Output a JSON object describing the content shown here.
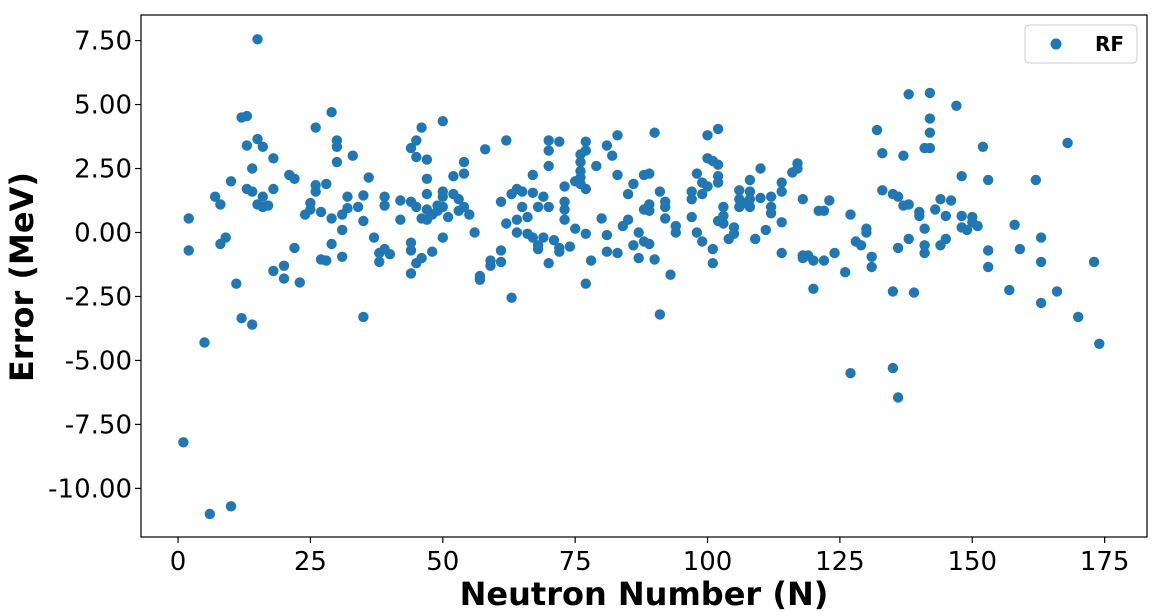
{
  "chart_data": {
    "type": "scatter",
    "title": "",
    "xlabel": "Neutron Number (N)",
    "ylabel": "Error (MeV)",
    "xlim": [
      -7,
      183
    ],
    "ylim": [
      -11.9,
      8.5
    ],
    "xticks": [
      0,
      25,
      50,
      75,
      100,
      125,
      150,
      175
    ],
    "xtick_labels": [
      "0",
      "25",
      "50",
      "75",
      "100",
      "125",
      "150",
      "175"
    ],
    "yticks": [
      -10,
      -7.5,
      -5,
      -2.5,
      0,
      2.5,
      5,
      7.5
    ],
    "ytick_labels": [
      "-10.00",
      "-7.50",
      "-5.00",
      "-2.50",
      "0.00",
      "2.50",
      "5.00",
      "7.50"
    ],
    "grid": false,
    "legend": {
      "position": "top-right",
      "entries": [
        "RF"
      ]
    },
    "series": [
      {
        "name": "RF",
        "color": "#1f77b4",
        "points": [
          [
            1,
            -8.2
          ],
          [
            2,
            0.55
          ],
          [
            2,
            -0.7
          ],
          [
            5,
            -4.3
          ],
          [
            6,
            -11.0
          ],
          [
            7,
            1.4
          ],
          [
            8,
            1.1
          ],
          [
            8,
            -0.45
          ],
          [
            9,
            -0.2
          ],
          [
            10,
            -10.7
          ],
          [
            10,
            2.0
          ],
          [
            11,
            -2.0
          ],
          [
            12,
            4.5
          ],
          [
            12,
            -3.35
          ],
          [
            13,
            4.55
          ],
          [
            13,
            3.4
          ],
          [
            13,
            1.7
          ],
          [
            14,
            2.5
          ],
          [
            14,
            1.6
          ],
          [
            14,
            -3.6
          ],
          [
            15,
            7.55
          ],
          [
            15,
            3.65
          ],
          [
            15,
            1.1
          ],
          [
            16,
            3.35
          ],
          [
            16,
            1.4
          ],
          [
            16,
            1.0
          ],
          [
            17,
            1.05
          ],
          [
            18,
            2.9
          ],
          [
            18,
            1.7
          ],
          [
            18,
            -1.5
          ],
          [
            20,
            -1.3
          ],
          [
            20,
            -1.8
          ],
          [
            21,
            2.25
          ],
          [
            22,
            2.1
          ],
          [
            22,
            -0.6
          ],
          [
            23,
            -1.95
          ],
          [
            24,
            0.7
          ],
          [
            25,
            1.15
          ],
          [
            25,
            0.9
          ],
          [
            26,
            4.1
          ],
          [
            26,
            1.85
          ],
          [
            26,
            1.6
          ],
          [
            27,
            0.8
          ],
          [
            27,
            -1.05
          ],
          [
            28,
            1.9
          ],
          [
            28,
            -1.1
          ],
          [
            29,
            4.7
          ],
          [
            29,
            0.55
          ],
          [
            29,
            -0.45
          ],
          [
            30,
            3.6
          ],
          [
            30,
            3.35
          ],
          [
            30,
            2.75
          ],
          [
            31,
            0.7
          ],
          [
            31,
            0.1
          ],
          [
            31,
            -0.95
          ],
          [
            32,
            1.4
          ],
          [
            32,
            0.95
          ],
          [
            33,
            3.0
          ],
          [
            34,
            1.0
          ],
          [
            35,
            1.45
          ],
          [
            35,
            0.45
          ],
          [
            35,
            -3.3
          ],
          [
            36,
            2.15
          ],
          [
            37,
            -0.2
          ],
          [
            38,
            -0.8
          ],
          [
            38,
            -1.15
          ],
          [
            39,
            1.4
          ],
          [
            39,
            1.05
          ],
          [
            39,
            -0.65
          ],
          [
            40,
            -0.85
          ],
          [
            42,
            1.25
          ],
          [
            42,
            0.5
          ],
          [
            44,
            3.3
          ],
          [
            44,
            1.2
          ],
          [
            44,
            -0.4
          ],
          [
            44,
            -0.7
          ],
          [
            44,
            -1.6
          ],
          [
            45,
            3.6
          ],
          [
            45,
            2.95
          ],
          [
            45,
            1.0
          ],
          [
            45,
            -1.2
          ],
          [
            46,
            4.1
          ],
          [
            46,
            0.55
          ],
          [
            46,
            -1.0
          ],
          [
            47,
            2.85
          ],
          [
            47,
            2.1
          ],
          [
            47,
            1.5
          ],
          [
            47,
            0.9
          ],
          [
            47,
            0.5
          ],
          [
            48,
            0.7
          ],
          [
            48,
            -0.75
          ],
          [
            49,
            1.05
          ],
          [
            49,
            0.85
          ],
          [
            50,
            4.35
          ],
          [
            50,
            1.6
          ],
          [
            50,
            1.4
          ],
          [
            50,
            1.0
          ],
          [
            50,
            -0.2
          ],
          [
            51,
            0.6
          ],
          [
            52,
            2.2
          ],
          [
            52,
            1.5
          ],
          [
            53,
            0.85
          ],
          [
            53,
            1.3
          ],
          [
            54,
            2.75
          ],
          [
            54,
            2.3
          ],
          [
            54,
            1.0
          ],
          [
            55,
            0.7
          ],
          [
            56,
            0.0
          ],
          [
            57,
            -1.7
          ],
          [
            57,
            -1.85
          ],
          [
            58,
            3.25
          ],
          [
            59,
            -1.1
          ],
          [
            59,
            -1.3
          ],
          [
            61,
            -0.7
          ],
          [
            61,
            -1.15
          ],
          [
            61,
            1.2
          ],
          [
            62,
            3.6
          ],
          [
            62,
            0.35
          ],
          [
            63,
            1.5
          ],
          [
            63,
            -2.55
          ],
          [
            64,
            1.7
          ],
          [
            64,
            0.5
          ],
          [
            64,
            0.0
          ],
          [
            65,
            1.6
          ],
          [
            65,
            1.0
          ],
          [
            66,
            0.6
          ],
          [
            66,
            -0.05
          ],
          [
            67,
            1.55
          ],
          [
            67,
            2.25
          ],
          [
            67,
            -0.2
          ],
          [
            68,
            1.0
          ],
          [
            68,
            -0.5
          ],
          [
            68,
            -0.65
          ],
          [
            69,
            1.4
          ],
          [
            69,
            -0.2
          ],
          [
            70,
            3.6
          ],
          [
            70,
            3.2
          ],
          [
            70,
            2.6
          ],
          [
            70,
            1.0
          ],
          [
            70,
            -1.2
          ],
          [
            71,
            -0.3
          ],
          [
            72,
            3.55
          ],
          [
            72,
            -0.6
          ],
          [
            72,
            -0.75
          ],
          [
            73,
            1.8
          ],
          [
            73,
            1.2
          ],
          [
            73,
            0.9
          ],
          [
            73,
            0.5
          ],
          [
            74,
            -0.55
          ],
          [
            75,
            2.0
          ],
          [
            75,
            0.15
          ],
          [
            76,
            3.05
          ],
          [
            76,
            2.75
          ],
          [
            76,
            2.4
          ],
          [
            76,
            2.15
          ],
          [
            76,
            1.9
          ],
          [
            77,
            3.55
          ],
          [
            77,
            3.2
          ],
          [
            77,
            1.7
          ],
          [
            77,
            -0.05
          ],
          [
            77,
            -2.0
          ],
          [
            78,
            -1.1
          ],
          [
            79,
            2.6
          ],
          [
            80,
            0.55
          ],
          [
            81,
            3.4
          ],
          [
            81,
            -0.1
          ],
          [
            81,
            -0.75
          ],
          [
            82,
            3.0
          ],
          [
            83,
            3.8
          ],
          [
            83,
            2.25
          ],
          [
            83,
            -0.8
          ],
          [
            84,
            0.25
          ],
          [
            85,
            0.5
          ],
          [
            85,
            1.5
          ],
          [
            86,
            1.9
          ],
          [
            86,
            -0.5
          ],
          [
            87,
            0.0
          ],
          [
            87,
            -1.0
          ],
          [
            88,
            2.25
          ],
          [
            88,
            0.9
          ],
          [
            88,
            -0.35
          ],
          [
            89,
            2.3
          ],
          [
            89,
            1.1
          ],
          [
            89,
            0.85
          ],
          [
            89,
            -0.45
          ],
          [
            90,
            3.9
          ],
          [
            90,
            -1.05
          ],
          [
            91,
            1.6
          ],
          [
            91,
            -3.2
          ],
          [
            92,
            1.2
          ],
          [
            92,
            1.0
          ],
          [
            92,
            0.55
          ],
          [
            93,
            -1.65
          ],
          [
            94,
            0.25
          ],
          [
            94,
            0.0
          ],
          [
            97,
            1.6
          ],
          [
            97,
            1.3
          ],
          [
            97,
            0.6
          ],
          [
            98,
            2.3
          ],
          [
            98,
            0.0
          ],
          [
            99,
            1.95
          ],
          [
            99,
            1.5
          ],
          [
            99,
            -0.35
          ],
          [
            100,
            3.8
          ],
          [
            100,
            2.9
          ],
          [
            100,
            1.8
          ],
          [
            101,
            -0.65
          ],
          [
            101,
            -1.2
          ],
          [
            101,
            2.8
          ],
          [
            102,
            4.05
          ],
          [
            102,
            2.65
          ],
          [
            102,
            2.2
          ],
          [
            102,
            1.95
          ],
          [
            102,
            0.45
          ],
          [
            103,
            1.0
          ],
          [
            103,
            0.65
          ],
          [
            103,
            0.35
          ],
          [
            104,
            -0.25
          ],
          [
            105,
            0.2
          ],
          [
            105,
            -0.05
          ],
          [
            106,
            1.65
          ],
          [
            106,
            1.3
          ],
          [
            106,
            1.0
          ],
          [
            107,
            1.15
          ],
          [
            108,
            1.6
          ],
          [
            108,
            1.3
          ],
          [
            108,
            1.0
          ],
          [
            108,
            2.05
          ],
          [
            109,
            -0.25
          ],
          [
            110,
            2.5
          ],
          [
            110,
            1.35
          ],
          [
            111,
            0.1
          ],
          [
            112,
            1.4
          ],
          [
            112,
            1.0
          ],
          [
            112,
            0.75
          ],
          [
            114,
            1.95
          ],
          [
            114,
            1.6
          ],
          [
            114,
            0.4
          ],
          [
            114,
            -0.8
          ],
          [
            116,
            2.35
          ],
          [
            117,
            2.7
          ],
          [
            117,
            2.5
          ],
          [
            118,
            1.3
          ],
          [
            118,
            -0.9
          ],
          [
            118,
            -1.0
          ],
          [
            119,
            -0.9
          ],
          [
            120,
            -1.1
          ],
          [
            120,
            -2.2
          ],
          [
            121,
            0.85
          ],
          [
            122,
            0.85
          ],
          [
            122,
            -1.1
          ],
          [
            123,
            1.25
          ],
          [
            124,
            -0.8
          ],
          [
            126,
            -1.55
          ],
          [
            127,
            0.7
          ],
          [
            127,
            -5.5
          ],
          [
            128,
            -0.35
          ],
          [
            129,
            -0.5
          ],
          [
            130,
            0.15
          ],
          [
            130,
            0.0
          ],
          [
            131,
            -0.95
          ],
          [
            131,
            -1.35
          ],
          [
            132,
            4.0
          ],
          [
            133,
            3.1
          ],
          [
            133,
            1.65
          ],
          [
            135,
            1.5
          ],
          [
            135,
            -2.3
          ],
          [
            135,
            -5.3
          ],
          [
            136,
            1.4
          ],
          [
            136,
            -0.6
          ],
          [
            136,
            -6.45
          ],
          [
            137,
            3.0
          ],
          [
            137,
            1.05
          ],
          [
            138,
            5.4
          ],
          [
            138,
            1.1
          ],
          [
            138,
            -0.25
          ],
          [
            139,
            -2.35
          ],
          [
            140,
            0.8
          ],
          [
            140,
            0.65
          ],
          [
            141,
            3.3
          ],
          [
            141,
            0.15
          ],
          [
            141,
            -0.5
          ],
          [
            141,
            -0.8
          ],
          [
            142,
            5.45
          ],
          [
            142,
            4.45
          ],
          [
            142,
            3.9
          ],
          [
            142,
            3.3
          ],
          [
            143,
            0.9
          ],
          [
            144,
            1.3
          ],
          [
            144,
            -0.5
          ],
          [
            145,
            0.65
          ],
          [
            145,
            -0.25
          ],
          [
            146,
            1.25
          ],
          [
            147,
            4.95
          ],
          [
            148,
            2.2
          ],
          [
            148,
            0.65
          ],
          [
            148,
            0.2
          ],
          [
            149,
            0.1
          ],
          [
            150,
            0.6
          ],
          [
            150,
            0.4
          ],
          [
            151,
            0.25
          ],
          [
            152,
            3.35
          ],
          [
            153,
            2.05
          ],
          [
            153,
            -0.7
          ],
          [
            153,
            -1.35
          ],
          [
            157,
            -2.25
          ],
          [
            158,
            0.3
          ],
          [
            159,
            -0.65
          ],
          [
            162,
            2.05
          ],
          [
            163,
            -0.2
          ],
          [
            163,
            -1.15
          ],
          [
            163,
            -2.75
          ],
          [
            166,
            -2.3
          ],
          [
            168,
            3.5
          ],
          [
            170,
            -3.3
          ],
          [
            173,
            -1.15
          ],
          [
            174,
            -4.35
          ]
        ]
      }
    ]
  }
}
